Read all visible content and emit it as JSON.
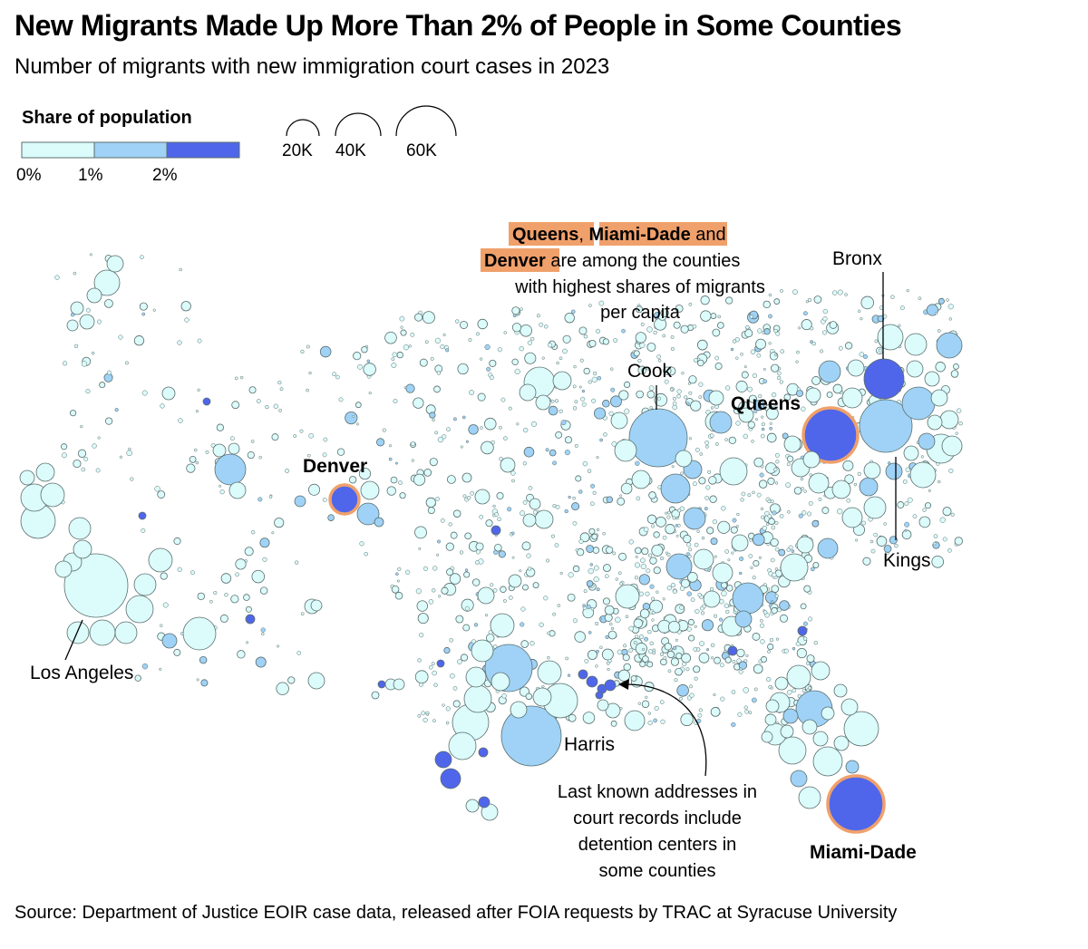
{
  "title": "New Migrants Made Up More Than 2% of People in Some Counties",
  "subtitle": "Number of migrants with new immigration court cases in 2023",
  "legend": {
    "color_title": "Share of population",
    "color_bins": [
      {
        "from": 0,
        "to": 1,
        "color": "#dcfbfb"
      },
      {
        "from": 1,
        "to": 2,
        "color": "#9fd2f6"
      },
      {
        "from": 2,
        "to": 3,
        "color": "#4f66ea"
      }
    ],
    "color_ticks": [
      "0%",
      "1%",
      "2%"
    ],
    "size_items": [
      {
        "value": 20000,
        "label": "20K"
      },
      {
        "value": 40000,
        "label": "40K"
      },
      {
        "value": 60000,
        "label": "60K"
      }
    ]
  },
  "colors": {
    "low": "#dcfbfb",
    "mid": "#9fd2f6",
    "high": "#4f66ea",
    "highlight": "#f0a06b",
    "stroke": "#5b6e6e"
  },
  "chart_data": {
    "type": "bubble-map",
    "title": "New Migrants Made Up More Than 2% of People in Some Counties",
    "subtitle": "Number of migrants with new immigration court cases in 2023",
    "size_variable": "Number of migrants with new immigration court cases",
    "color_variable": "Share of population (%)",
    "labeled_counties": [
      {
        "name": "Los Angeles",
        "migrants": 72000,
        "share_bin": "0-1%",
        "highlight": false
      },
      {
        "name": "Harris",
        "migrants": 58000,
        "share_bin": "1-2%",
        "highlight": false
      },
      {
        "name": "Cook",
        "migrants": 58000,
        "share_bin": "1-2%",
        "highlight": false
      },
      {
        "name": "Kings",
        "migrants": 48000,
        "share_bin": "1-2%",
        "highlight": false
      },
      {
        "name": "Queens",
        "migrants": 42000,
        "share_bin": ">2%",
        "highlight": true
      },
      {
        "name": "Bronx",
        "migrants": 30000,
        "share_bin": ">2%",
        "highlight": false
      },
      {
        "name": "Miami-Dade",
        "migrants": 60000,
        "share_bin": ">2%",
        "highlight": true
      },
      {
        "name": "Denver",
        "migrants": 15000,
        "share_bin": ">2%",
        "highlight": true
      }
    ]
  },
  "labels": {
    "cook": "Cook",
    "bronx": "Bronx",
    "queens": "Queens",
    "kings": "Kings",
    "denver": "Denver",
    "los_angeles": "Los Angeles",
    "harris": "Harris",
    "miami_dade": "Miami-Dade"
  },
  "annotation_top": {
    "hl1": "Queens",
    "sep1": ", ",
    "hl2": "Miami-Dade",
    "tail1": " and",
    "hl3": "Denver",
    "tail2": " are among the counties",
    "line3": "with highest shares of migrants",
    "line4": "per capita"
  },
  "annotation_bottom": {
    "line1": "Last known addresses in",
    "line2": "court records include",
    "line3": "detention centers in",
    "line4": "some counties"
  },
  "source": "Source: Department of Justice EOIR case data, released after FOIA requests by TRAC at Syracuse University"
}
